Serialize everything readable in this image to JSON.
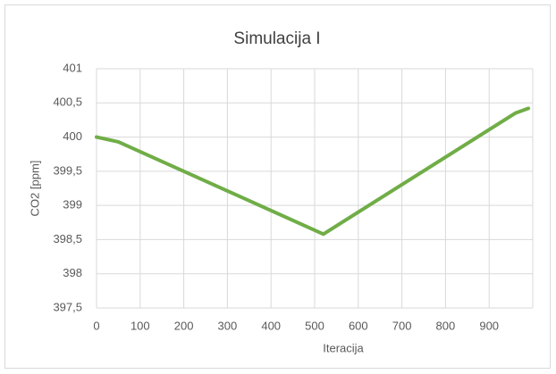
{
  "chart_data": {
    "type": "line",
    "title": "Simulacija I",
    "x_label": "Iteracija",
    "y_label": "CO2 [ppm]",
    "x": [
      0,
      50,
      520,
      960,
      990
    ],
    "series": [
      {
        "name": "CO2",
        "color": "#70ad47",
        "values": [
          400,
          399.93,
          398.58,
          400.35,
          400.42
        ]
      }
    ],
    "xlim": [
      0,
      1000
    ],
    "xticks": [
      0,
      100,
      200,
      300,
      400,
      500,
      600,
      700,
      800,
      900
    ],
    "ylim": [
      397.5,
      401
    ],
    "yticks": [
      {
        "value": 397.5,
        "label": "397,5"
      },
      398,
      {
        "value": 398.5,
        "label": "398,5"
      },
      399,
      {
        "value": 399.5,
        "label": "399,5"
      },
      400,
      {
        "value": 400.5,
        "label": "400,5"
      },
      401
    ],
    "grid": true
  }
}
